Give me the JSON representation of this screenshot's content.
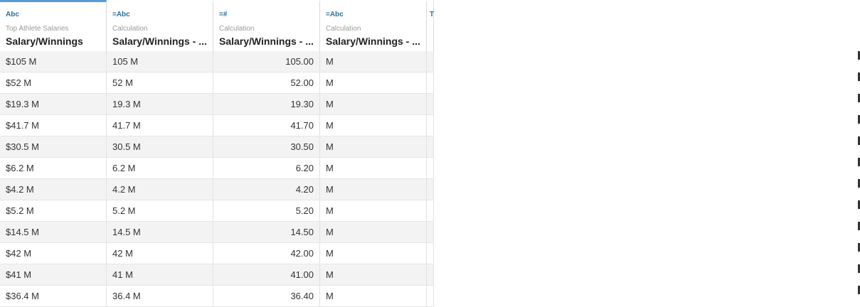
{
  "columns": [
    {
      "type_icon": "Abc",
      "origin": "Top Athlete Salaries",
      "name": "Salary/Winnings",
      "selected": true
    },
    {
      "type_icon": "=Abc",
      "origin": "Calculation",
      "name": "Salary/Winnings - ...",
      "selected": false
    },
    {
      "type_icon": "=#",
      "origin": "Calculation",
      "name": "Salary/Winnings - ...",
      "selected": false
    },
    {
      "type_icon": "=Abc",
      "origin": "Calculation",
      "name": "Salary/Winnings - ...",
      "selected": false
    },
    {
      "type_icon": "T",
      "origin": "",
      "name": "",
      "selected": false
    }
  ],
  "rows": [
    [
      "$105 M",
      "105 M",
      "105.00",
      "M"
    ],
    [
      "$52 M",
      "52 M",
      "52.00",
      "M"
    ],
    [
      "$19.3 M",
      "19.3 M",
      "19.30",
      "M"
    ],
    [
      "$41.7 M",
      "41.7 M",
      "41.70",
      "M"
    ],
    [
      "$30.5 M",
      "30.5 M",
      "30.50",
      "M"
    ],
    [
      "$6.2 M",
      "6.2 M",
      "6.20",
      "M"
    ],
    [
      "$4.2 M",
      "4.2 M",
      "4.20",
      "M"
    ],
    [
      "$5.2 M",
      "5.2 M",
      "5.20",
      "M"
    ],
    [
      "$14.5 M",
      "14.5 M",
      "14.50",
      "M"
    ],
    [
      "$42 M",
      "42 M",
      "42.00",
      "M"
    ],
    [
      "$41 M",
      "41 M",
      "41.00",
      "M"
    ],
    [
      "$36.4 M",
      "36.4 M",
      "36.40",
      "M"
    ]
  ]
}
